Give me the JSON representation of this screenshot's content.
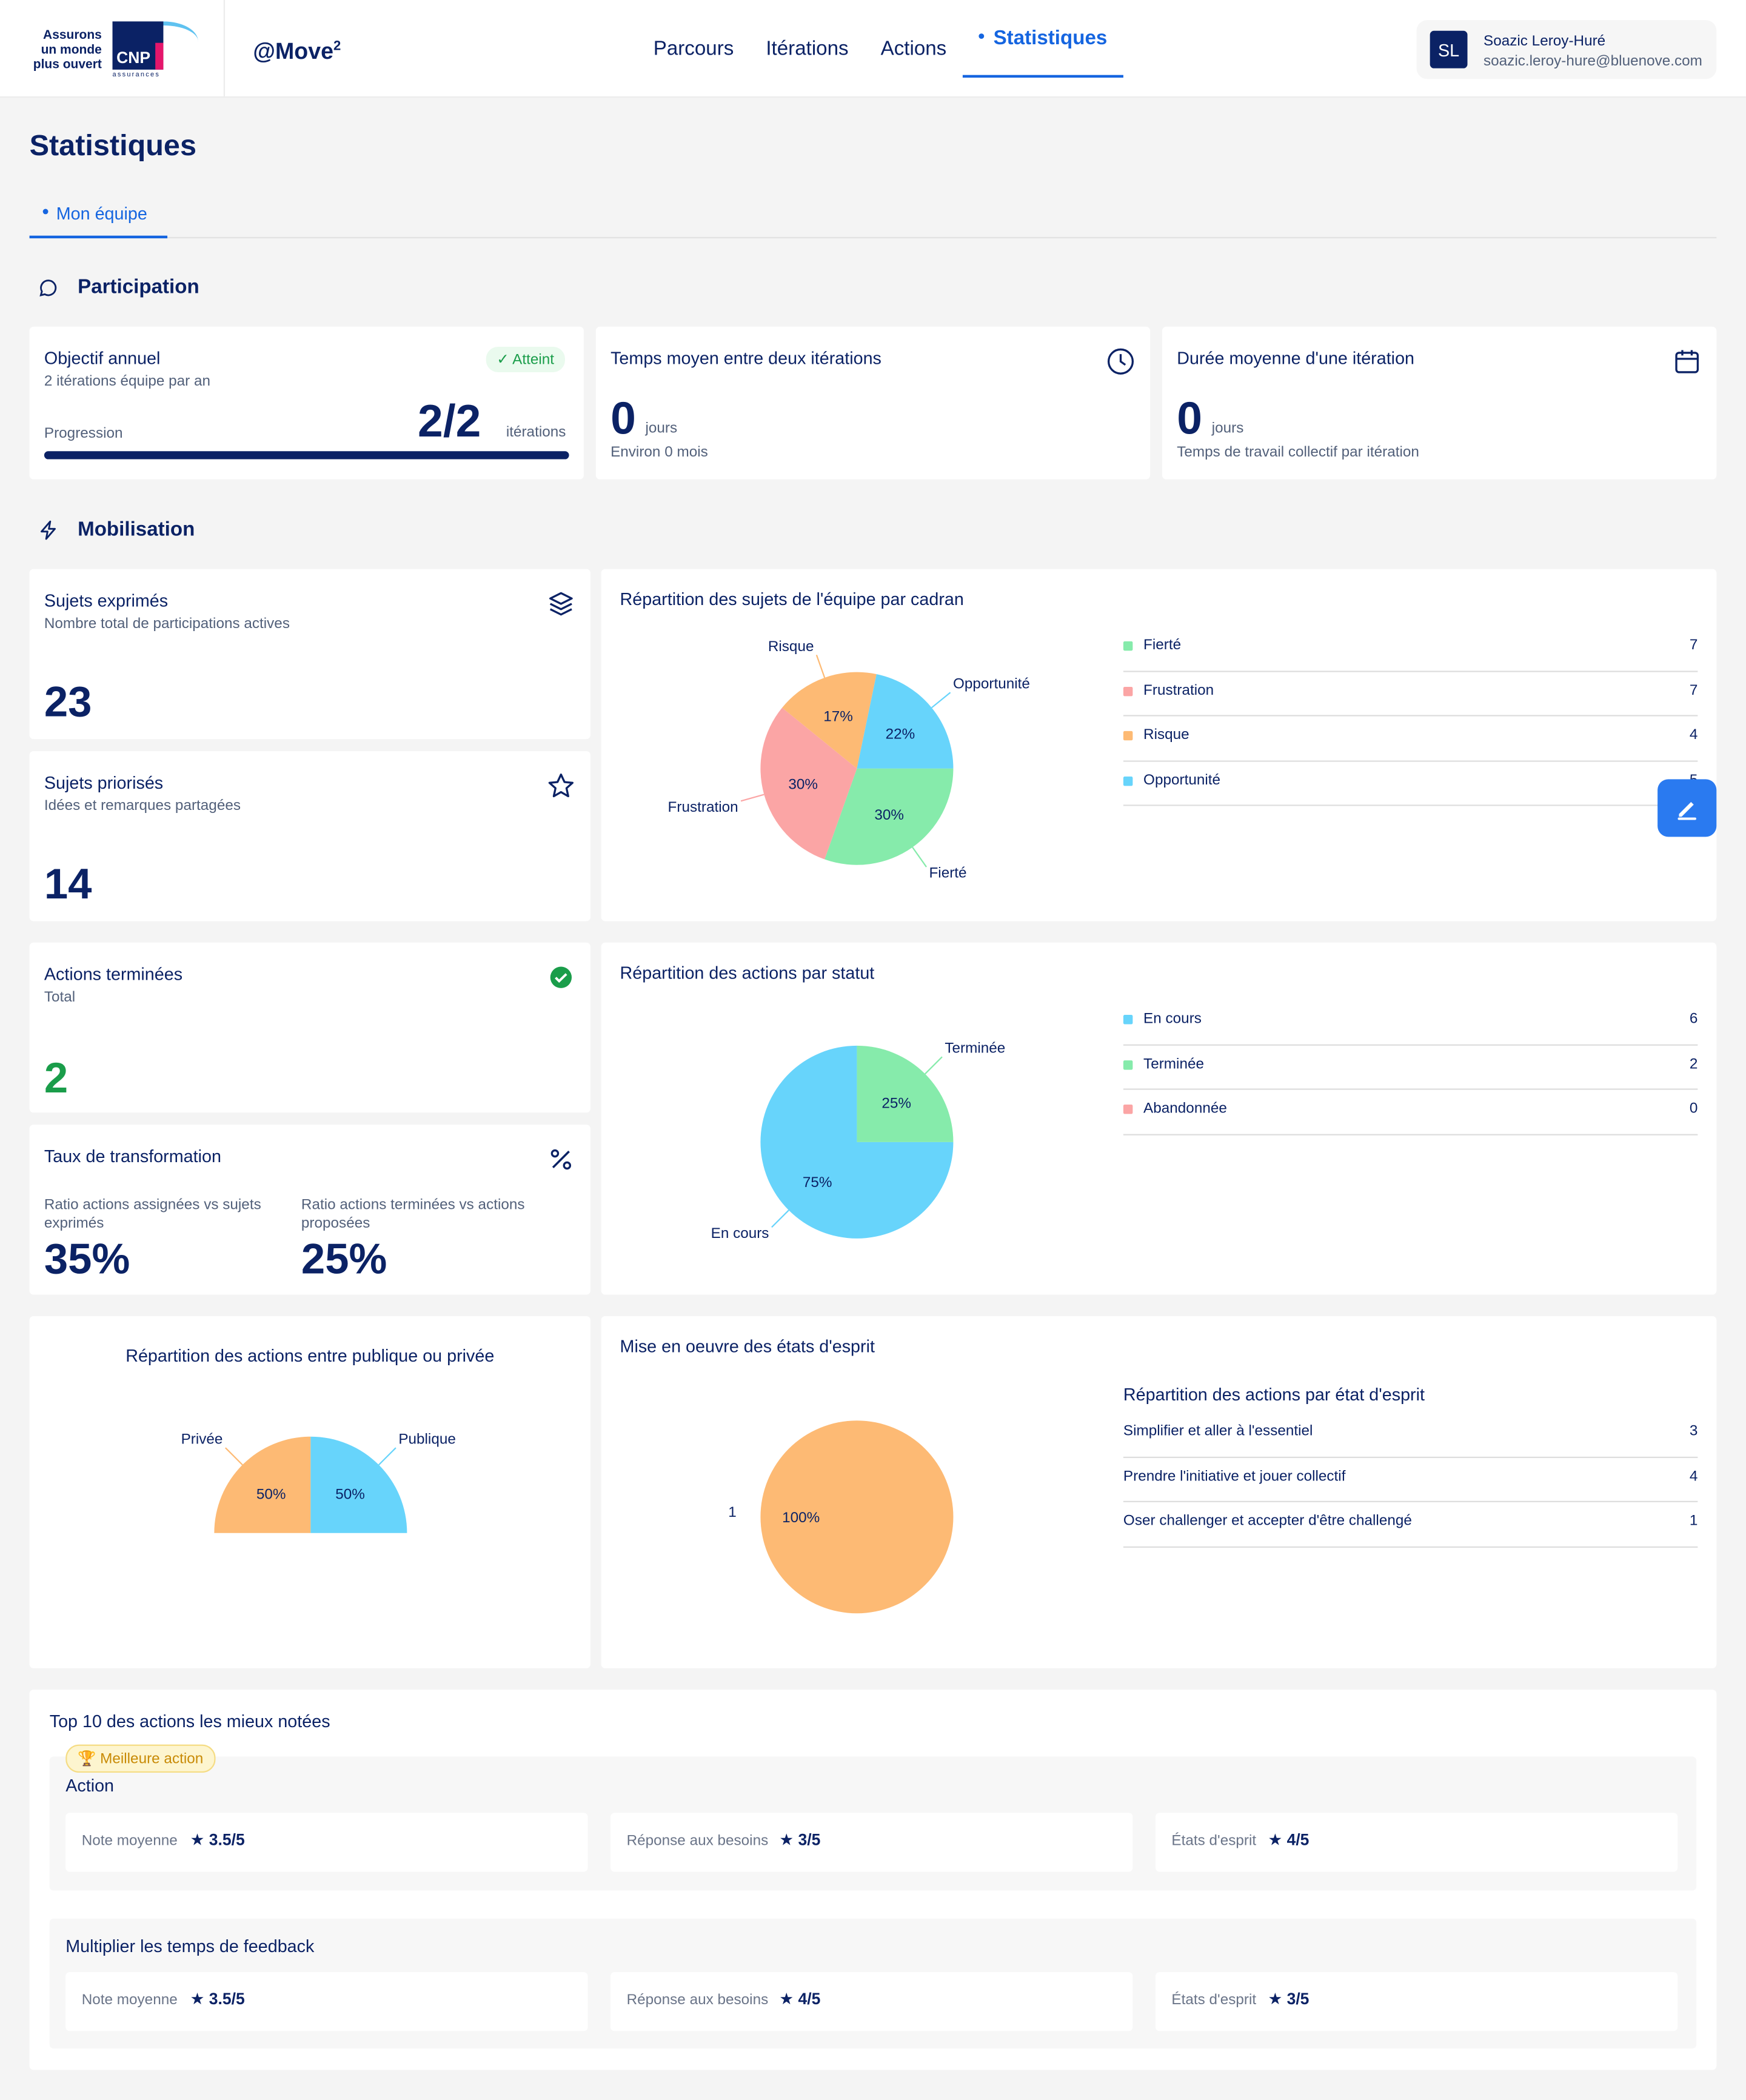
{
  "header": {
    "logo_text": [
      "Assurons",
      "un monde",
      "plus ouvert"
    ],
    "logo_mark": "CNP",
    "logo_sub": "assurances",
    "app_name": "@Move",
    "app_sup": "2",
    "nav": [
      "Parcours",
      "Itérations",
      "Actions",
      "Statistiques"
    ],
    "active_nav": "Statistiques",
    "user": {
      "initials": "SL",
      "name": "Soazic Leroy-Huré",
      "email": "soazic.leroy-hure@bluenove.com"
    }
  },
  "page": {
    "title": "Statistiques",
    "tab": "Mon équipe"
  },
  "participation": {
    "title": "Participation",
    "objectif": {
      "title": "Objectif annuel",
      "sub": "2 itérations équipe par an",
      "badge": "Atteint",
      "progress_label": "Progression",
      "value": "2/2",
      "unit": "itérations",
      "progress": 1.0
    },
    "temps": {
      "title": "Temps moyen entre deux itérations",
      "value": "0",
      "unit": "jours",
      "sub": "Environ 0 mois"
    },
    "duree": {
      "title": "Durée moyenne d'une itération",
      "value": "0",
      "unit": "jours",
      "sub": "Temps de travail collectif par itération"
    }
  },
  "mobilisation": {
    "title": "Mobilisation",
    "sujets_exprimes": {
      "title": "Sujets exprimés",
      "sub": "Nombre total de participations actives",
      "value": "23"
    },
    "sujets_priorises": {
      "title": "Sujets priorisés",
      "sub": "Idées et remarques partagées",
      "value": "14"
    },
    "actions_terminees": {
      "title": "Actions terminées",
      "sub": "Total",
      "value": "2"
    },
    "taux": {
      "title": "Taux de transformation",
      "r1_label": "Ratio actions assignées vs sujets exprimés",
      "r1_value": "35%",
      "r2_label": "Ratio actions terminées vs actions proposées",
      "r2_value": "25%"
    }
  },
  "chart_data": [
    {
      "type": "pie",
      "title": "Répartition des sujets de l'équipe par cadran",
      "categories": [
        "Fierté",
        "Frustration",
        "Risque",
        "Opportunité"
      ],
      "values": [
        7,
        7,
        4,
        5
      ],
      "percent_labels": [
        "30%",
        "30%",
        "17%",
        "22%"
      ],
      "colors": [
        "#86ebab",
        "#fba5a5",
        "#fdba74",
        "#67d4fb"
      ]
    },
    {
      "type": "pie",
      "title": "Répartition des actions par statut",
      "categories": [
        "En cours",
        "Terminée",
        "Abandonnée"
      ],
      "values": [
        6,
        2,
        0
      ],
      "percent_labels": [
        "75%",
        "25%",
        ""
      ],
      "colors": [
        "#67d4fb",
        "#86ebab",
        "#fba5a5"
      ]
    },
    {
      "type": "pie",
      "title": "Répartition des actions entre publique ou privée",
      "categories": [
        "Privée",
        "Publique"
      ],
      "values": [
        1,
        1
      ],
      "percent_labels": [
        "50%",
        "50%"
      ],
      "colors": [
        "#fdba74",
        "#67d4fb"
      ]
    },
    {
      "type": "pie",
      "title": "Mise en oeuvre des états d'esprit",
      "categories": [
        "1"
      ],
      "values": [
        1
      ],
      "percent_labels": [
        "100%"
      ],
      "colors": [
        "#fdba74"
      ]
    }
  ],
  "legend1": {
    "rows": [
      {
        "name": "Fierté",
        "value": "7",
        "color": "#86ebab"
      },
      {
        "name": "Frustration",
        "value": "7",
        "color": "#fba5a5"
      },
      {
        "name": "Risque",
        "value": "4",
        "color": "#fdba74"
      },
      {
        "name": "Opportunité",
        "value": "5",
        "color": "#67d4fb"
      }
    ]
  },
  "legend2": {
    "rows": [
      {
        "name": "En cours",
        "value": "6",
        "color": "#67d4fb"
      },
      {
        "name": "Terminée",
        "value": "2",
        "color": "#86ebab"
      },
      {
        "name": "Abandonnée",
        "value": "0",
        "color": "#fba5a5"
      }
    ]
  },
  "etats": {
    "subtitle": "Répartition des actions par état d'esprit",
    "rows": [
      {
        "name": "Simplifier et aller à l'essentiel",
        "value": "3"
      },
      {
        "name": "Prendre l'initiative et jouer collectif",
        "value": "4"
      },
      {
        "name": "Oser challenger et accepter d'être challengé",
        "value": "1"
      }
    ]
  },
  "top": {
    "title": "Top 10 des actions les mieux notées",
    "best_badge": "Meilleure action",
    "labels": {
      "note": "Note moyenne",
      "besoins": "Réponse aux besoins",
      "esprit": "États d'esprit"
    },
    "items": [
      {
        "name": "Action",
        "note": "3.5/5",
        "besoins": "3/5",
        "esprit": "4/5"
      },
      {
        "name": "Multiplier les temps de feedback",
        "note": "3.5/5",
        "besoins": "4/5",
        "esprit": "3/5"
      }
    ]
  }
}
